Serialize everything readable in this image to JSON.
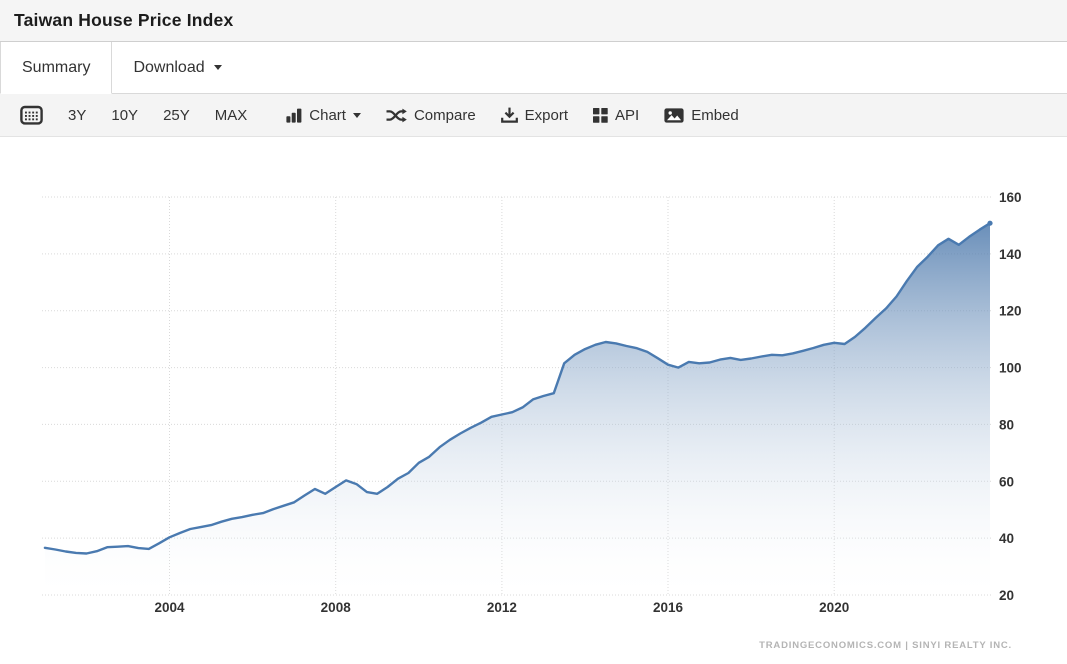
{
  "header": {
    "title": "Taiwan House Price Index"
  },
  "tabs": {
    "summary": "Summary",
    "download": "Download"
  },
  "toolbar": {
    "range_3y": "3Y",
    "range_10y": "10Y",
    "range_25y": "25Y",
    "range_max": "MAX",
    "chart": "Chart",
    "compare": "Compare",
    "export": "Export",
    "api": "API",
    "embed": "Embed"
  },
  "footer": {
    "attribution": "TRADINGECONOMICS.COM | SINYI REALTY INC."
  },
  "chart_data": {
    "type": "area",
    "title": "Taiwan House Price Index",
    "xlabel": "",
    "ylabel": "",
    "x_ticks": [
      2004,
      2008,
      2012,
      2016,
      2020
    ],
    "y_ticks": [
      20,
      40,
      60,
      80,
      100,
      120,
      140,
      160
    ],
    "xlim": [
      2000.93,
      2023.75
    ],
    "ylim": [
      20,
      160
    ],
    "grid": "dotted",
    "legend": "none",
    "line_color": "#4a7ab0",
    "fill_gradient_top": "#4976aa",
    "fill_gradient_bottom": "#ffffff",
    "points": [
      [
        2001.0,
        36.6
      ],
      [
        2001.25,
        36.0
      ],
      [
        2001.5,
        35.3
      ],
      [
        2001.75,
        34.8
      ],
      [
        2002.0,
        34.6
      ],
      [
        2002.25,
        35.4
      ],
      [
        2002.5,
        36.8
      ],
      [
        2002.75,
        37.0
      ],
      [
        2003.0,
        37.2
      ],
      [
        2003.25,
        36.5
      ],
      [
        2003.5,
        36.2
      ],
      [
        2003.75,
        38.2
      ],
      [
        2004.0,
        40.3
      ],
      [
        2004.25,
        41.8
      ],
      [
        2004.5,
        43.2
      ],
      [
        2004.75,
        43.9
      ],
      [
        2005.0,
        44.6
      ],
      [
        2005.25,
        45.8
      ],
      [
        2005.5,
        46.8
      ],
      [
        2005.75,
        47.4
      ],
      [
        2006.0,
        48.2
      ],
      [
        2006.25,
        48.8
      ],
      [
        2006.5,
        50.2
      ],
      [
        2006.75,
        51.4
      ],
      [
        2007.0,
        52.6
      ],
      [
        2007.25,
        55.0
      ],
      [
        2007.5,
        57.3
      ],
      [
        2007.75,
        55.6
      ],
      [
        2008.0,
        58.0
      ],
      [
        2008.25,
        60.3
      ],
      [
        2008.5,
        59.0
      ],
      [
        2008.75,
        56.2
      ],
      [
        2009.0,
        55.6
      ],
      [
        2009.25,
        58.0
      ],
      [
        2009.5,
        60.9
      ],
      [
        2009.75,
        62.9
      ],
      [
        2010.0,
        66.5
      ],
      [
        2010.25,
        68.6
      ],
      [
        2010.5,
        72.0
      ],
      [
        2010.75,
        74.6
      ],
      [
        2011.0,
        76.8
      ],
      [
        2011.25,
        78.8
      ],
      [
        2011.5,
        80.6
      ],
      [
        2011.75,
        82.7
      ],
      [
        2012.0,
        83.5
      ],
      [
        2012.25,
        84.3
      ],
      [
        2012.5,
        86.0
      ],
      [
        2012.75,
        88.8
      ],
      [
        2013.0,
        90.0
      ],
      [
        2013.25,
        91.0
      ],
      [
        2013.5,
        101.5
      ],
      [
        2013.75,
        104.5
      ],
      [
        2014.0,
        106.5
      ],
      [
        2014.25,
        108.0
      ],
      [
        2014.5,
        109.0
      ],
      [
        2014.75,
        108.5
      ],
      [
        2015.0,
        107.6
      ],
      [
        2015.25,
        106.8
      ],
      [
        2015.5,
        105.5
      ],
      [
        2015.75,
        103.3
      ],
      [
        2016.0,
        101.0
      ],
      [
        2016.25,
        100.0
      ],
      [
        2016.5,
        102.0
      ],
      [
        2016.75,
        101.5
      ],
      [
        2017.0,
        101.8
      ],
      [
        2017.25,
        102.8
      ],
      [
        2017.5,
        103.4
      ],
      [
        2017.75,
        102.7
      ],
      [
        2018.0,
        103.2
      ],
      [
        2018.25,
        103.9
      ],
      [
        2018.5,
        104.5
      ],
      [
        2018.75,
        104.3
      ],
      [
        2019.0,
        105.0
      ],
      [
        2019.25,
        105.9
      ],
      [
        2019.5,
        106.9
      ],
      [
        2019.75,
        108.0
      ],
      [
        2020.0,
        108.7
      ],
      [
        2020.25,
        108.3
      ],
      [
        2020.5,
        110.8
      ],
      [
        2020.75,
        114.0
      ],
      [
        2021.0,
        117.5
      ],
      [
        2021.25,
        120.8
      ],
      [
        2021.5,
        125.0
      ],
      [
        2021.75,
        130.5
      ],
      [
        2022.0,
        135.5
      ],
      [
        2022.25,
        139.0
      ],
      [
        2022.5,
        143.0
      ],
      [
        2022.75,
        145.3
      ],
      [
        2023.0,
        143.2
      ],
      [
        2023.25,
        146.0
      ],
      [
        2023.5,
        148.5
      ],
      [
        2023.75,
        150.8
      ]
    ]
  }
}
